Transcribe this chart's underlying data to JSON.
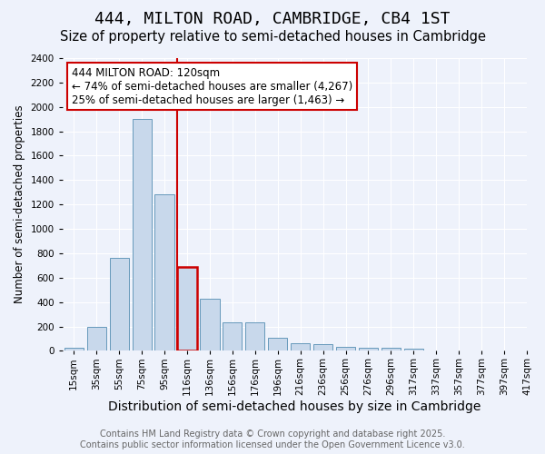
{
  "title": "444, MILTON ROAD, CAMBRIDGE, CB4 1ST",
  "subtitle": "Size of property relative to semi-detached houses in Cambridge",
  "xlabel": "Distribution of semi-detached houses by size in Cambridge",
  "ylabel": "Number of semi-detached properties",
  "bin_labels": [
    "15sqm",
    "35sqm",
    "55sqm",
    "75sqm",
    "95sqm",
    "116sqm",
    "136sqm",
    "156sqm",
    "176sqm",
    "196sqm",
    "216sqm",
    "236sqm",
    "256sqm",
    "276sqm",
    "296sqm",
    "317sqm",
    "337sqm",
    "357sqm",
    "377sqm",
    "397sqm",
    "417sqm"
  ],
  "values": [
    25,
    200,
    760,
    1900,
    1280,
    690,
    430,
    230,
    230,
    105,
    60,
    55,
    32,
    25,
    22,
    15,
    5,
    3,
    1,
    0
  ],
  "bar_color": "#c8d8eb",
  "bar_edge_color": "#6699bb",
  "highlight_bar_index": 5,
  "highlight_bar_edge_color": "#cc0000",
  "vline_color": "#cc0000",
  "annotation_title": "444 MILTON ROAD: 120sqm",
  "annotation_line1": "← 74% of semi-detached houses are smaller (4,267)",
  "annotation_line2": "25% of semi-detached houses are larger (1,463) →",
  "annotation_box_color": "#cc0000",
  "ylim": [
    0,
    2400
  ],
  "yticks": [
    0,
    200,
    400,
    600,
    800,
    1000,
    1200,
    1400,
    1600,
    1800,
    2000,
    2200,
    2400
  ],
  "footer1": "Contains HM Land Registry data © Crown copyright and database right 2025.",
  "footer2": "Contains public sector information licensed under the Open Government Licence v3.0.",
  "bg_color": "#eef2fb",
  "plot_bg_color": "#eef2fb",
  "grid_color": "#ffffff",
  "title_fontsize": 13,
  "subtitle_fontsize": 10.5,
  "xlabel_fontsize": 10,
  "ylabel_fontsize": 8.5,
  "tick_fontsize": 7.5,
  "footer_fontsize": 7,
  "annotation_fontsize": 8.5
}
